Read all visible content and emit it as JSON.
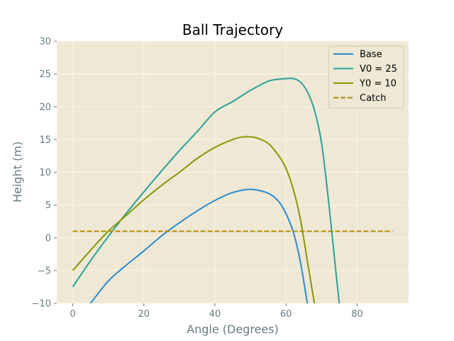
{
  "chart_data": {
    "type": "line",
    "title": "Ball Trajectory",
    "xlabel": "Angle (Degrees)",
    "ylabel": "Height (m)",
    "xlim": [
      -4.5,
      94.5
    ],
    "ylim": [
      -10,
      30
    ],
    "xticks": [
      0,
      20,
      40,
      60,
      80
    ],
    "yticks": [
      -10,
      -5,
      0,
      5,
      10,
      15,
      20,
      25,
      30
    ],
    "grid": true,
    "legend_position": "top-right",
    "colors": {
      "background": "#eee8d5",
      "grid": "#fdf6e3",
      "tick_text": "#657b83"
    },
    "series": [
      {
        "name": "Base",
        "color": "#268bd2",
        "dashed": false,
        "x": [
          5,
          10,
          15,
          20,
          25,
          30,
          35,
          40,
          45,
          50,
          55,
          58,
          60,
          62,
          64,
          66
        ],
        "y": [
          -10,
          -6.6,
          -4.2,
          -2.0,
          0.3,
          2.3,
          4.1,
          5.7,
          6.9,
          7.4,
          6.8,
          5.5,
          3.7,
          1.0,
          -3.5,
          -10
        ]
      },
      {
        "name": "V0 = 25",
        "color": "#2aa198",
        "dashed": false,
        "x": [
          0,
          5,
          10,
          15,
          20,
          25,
          30,
          35,
          40,
          45,
          50,
          55,
          58,
          60,
          62,
          64,
          66,
          68,
          70,
          72,
          74,
          75
        ],
        "y": [
          -7.5,
          -3.5,
          0.2,
          3.7,
          7.0,
          10.2,
          13.3,
          16.2,
          19.2,
          20.8,
          22.5,
          23.9,
          24.2,
          24.3,
          24.3,
          23.8,
          22.3,
          19.5,
          14.5,
          5.5,
          -5.0,
          -10
        ]
      },
      {
        "name": "Y0 = 10",
        "color": "#859900",
        "dashed": false,
        "x": [
          0,
          5,
          10,
          15,
          20,
          25,
          30,
          35,
          40,
          45,
          48,
          50,
          52,
          55,
          58,
          60,
          62,
          64,
          66,
          68
        ],
        "y": [
          -5.0,
          -1.9,
          1.0,
          3.4,
          5.8,
          8.0,
          10.0,
          12.1,
          13.8,
          15.0,
          15.4,
          15.4,
          15.2,
          14.4,
          12.5,
          10.6,
          7.5,
          3.0,
          -3.5,
          -10
        ]
      },
      {
        "name": "Catch",
        "color": "#b58900",
        "dashed": true,
        "x": [
          0,
          90
        ],
        "y": [
          1,
          1
        ]
      }
    ]
  }
}
